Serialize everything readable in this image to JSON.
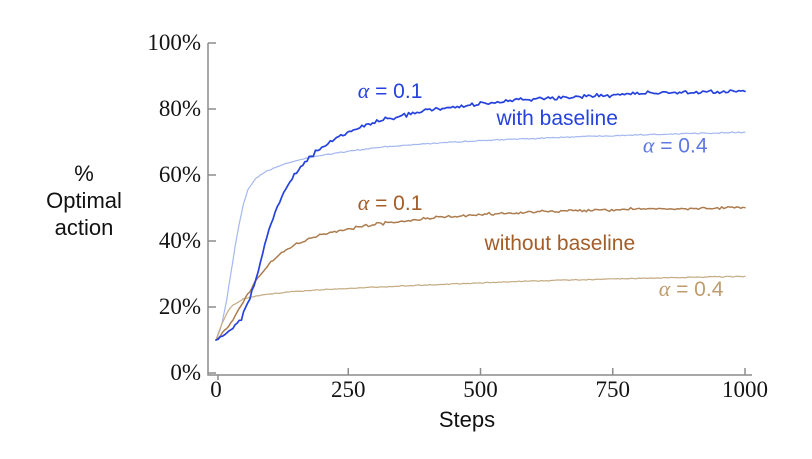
{
  "chart_data": {
    "type": "line",
    "title": "",
    "xlabel": "Steps",
    "ylabel": "% Optimal action",
    "ylabel_lines": [
      "%",
      "Optimal",
      "action"
    ],
    "xlim": [
      0,
      1000
    ],
    "ylim": [
      0,
      100
    ],
    "x_tick_labels": [
      "0",
      "250",
      "500",
      "750",
      "1000"
    ],
    "x_tick_values": [
      0,
      250,
      500,
      750,
      1000
    ],
    "y_tick_labels": [
      "0%",
      "20%",
      "40%",
      "60%",
      "80%",
      "100%"
    ],
    "y_tick_values": [
      0,
      20,
      40,
      60,
      80,
      100
    ],
    "grid": false,
    "legend_position": "inline-annotations",
    "axis_color": "#8c8c8c",
    "text_color": "#141414",
    "series": [
      {
        "name": "with baseline, alpha = 0.4",
        "group": "with baseline",
        "alpha": "0.4",
        "color": "#a4b8ef",
        "noise": 0.28,
        "width": 1.2,
        "x": [
          0,
          10,
          20,
          30,
          40,
          50,
          60,
          75,
          100,
          125,
          150,
          175,
          200,
          250,
          300,
          350,
          400,
          450,
          500,
          600,
          700,
          800,
          900,
          1000
        ],
        "y": [
          10,
          14,
          22,
          32,
          42,
          50,
          55.5,
          59,
          61.5,
          63,
          64.3,
          65.2,
          66,
          67.2,
          68.2,
          68.9,
          69.5,
          70,
          70.4,
          71.1,
          71.7,
          72.2,
          72.6,
          73
        ]
      },
      {
        "name": "without baseline, alpha = 0.4",
        "group": "without baseline",
        "alpha": "0.4",
        "color": "#c5ab83",
        "noise": 0.22,
        "width": 1.2,
        "x": [
          0,
          10,
          20,
          30,
          50,
          75,
          100,
          150,
          200,
          300,
          400,
          500,
          600,
          700,
          800,
          900,
          1000
        ],
        "y": [
          10,
          14.5,
          18,
          20.3,
          22.3,
          23.3,
          23.9,
          24.7,
          25.2,
          26,
          26.7,
          27.3,
          27.9,
          28.3,
          28.7,
          29,
          29.3
        ]
      },
      {
        "name": "without baseline, alpha = 0.1",
        "group": "without baseline",
        "alpha": "0.1",
        "color": "#ad7c4e",
        "noise": 0.55,
        "width": 1.5,
        "x": [
          0,
          25,
          50,
          60,
          75,
          100,
          125,
          150,
          175,
          200,
          250,
          300,
          350,
          400,
          450,
          500,
          550,
          600,
          650,
          700,
          750,
          800,
          850,
          900,
          950,
          1000
        ],
        "y": [
          10,
          14.5,
          21,
          24,
          28,
          33,
          36.5,
          39,
          40.7,
          42,
          43.7,
          45,
          46,
          46.9,
          47.5,
          48,
          48.4,
          48.8,
          49.1,
          49.3,
          49.5,
          49.7,
          49.8,
          49.9,
          50,
          50.2
        ]
      },
      {
        "name": "with baseline, alpha = 0.1",
        "group": "with baseline",
        "alpha": "0.1",
        "color": "#2642dd",
        "noise": 0.85,
        "width": 1.7,
        "x": [
          0,
          25,
          50,
          65,
          80,
          90,
          100,
          115,
          130,
          150,
          175,
          200,
          225,
          250,
          275,
          300,
          350,
          400,
          450,
          500,
          550,
          600,
          650,
          700,
          750,
          800,
          850,
          900,
          950,
          1000
        ],
        "y": [
          10,
          12.5,
          17,
          23,
          31,
          38,
          44,
          50,
          55,
          60.5,
          65,
          68.5,
          71,
          73,
          74.7,
          76,
          78,
          79.6,
          80.7,
          81.6,
          82.3,
          82.9,
          83.4,
          83.9,
          84.3,
          84.6,
          84.9,
          85.1,
          85.3,
          85.5
        ]
      }
    ],
    "annotations": [
      {
        "text": "α = 0.1",
        "color": "#2642dd",
        "x": 329,
        "y": 85.5
      },
      {
        "text": "with baseline",
        "color": "#2642dd",
        "x": 645,
        "y": 77.3
      },
      {
        "text": "α = 0.4",
        "color": "#5d78e2",
        "x": 868,
        "y": 69.0
      },
      {
        "text": "α = 0.1",
        "color": "#a55d28",
        "x": 329,
        "y": 51.5
      },
      {
        "text": "without baseline",
        "color": "#a55d28",
        "x": 650,
        "y": 39.4
      },
      {
        "text": "α = 0.4",
        "color": "#bf9c6d",
        "x": 898,
        "y": 25.5
      }
    ]
  }
}
